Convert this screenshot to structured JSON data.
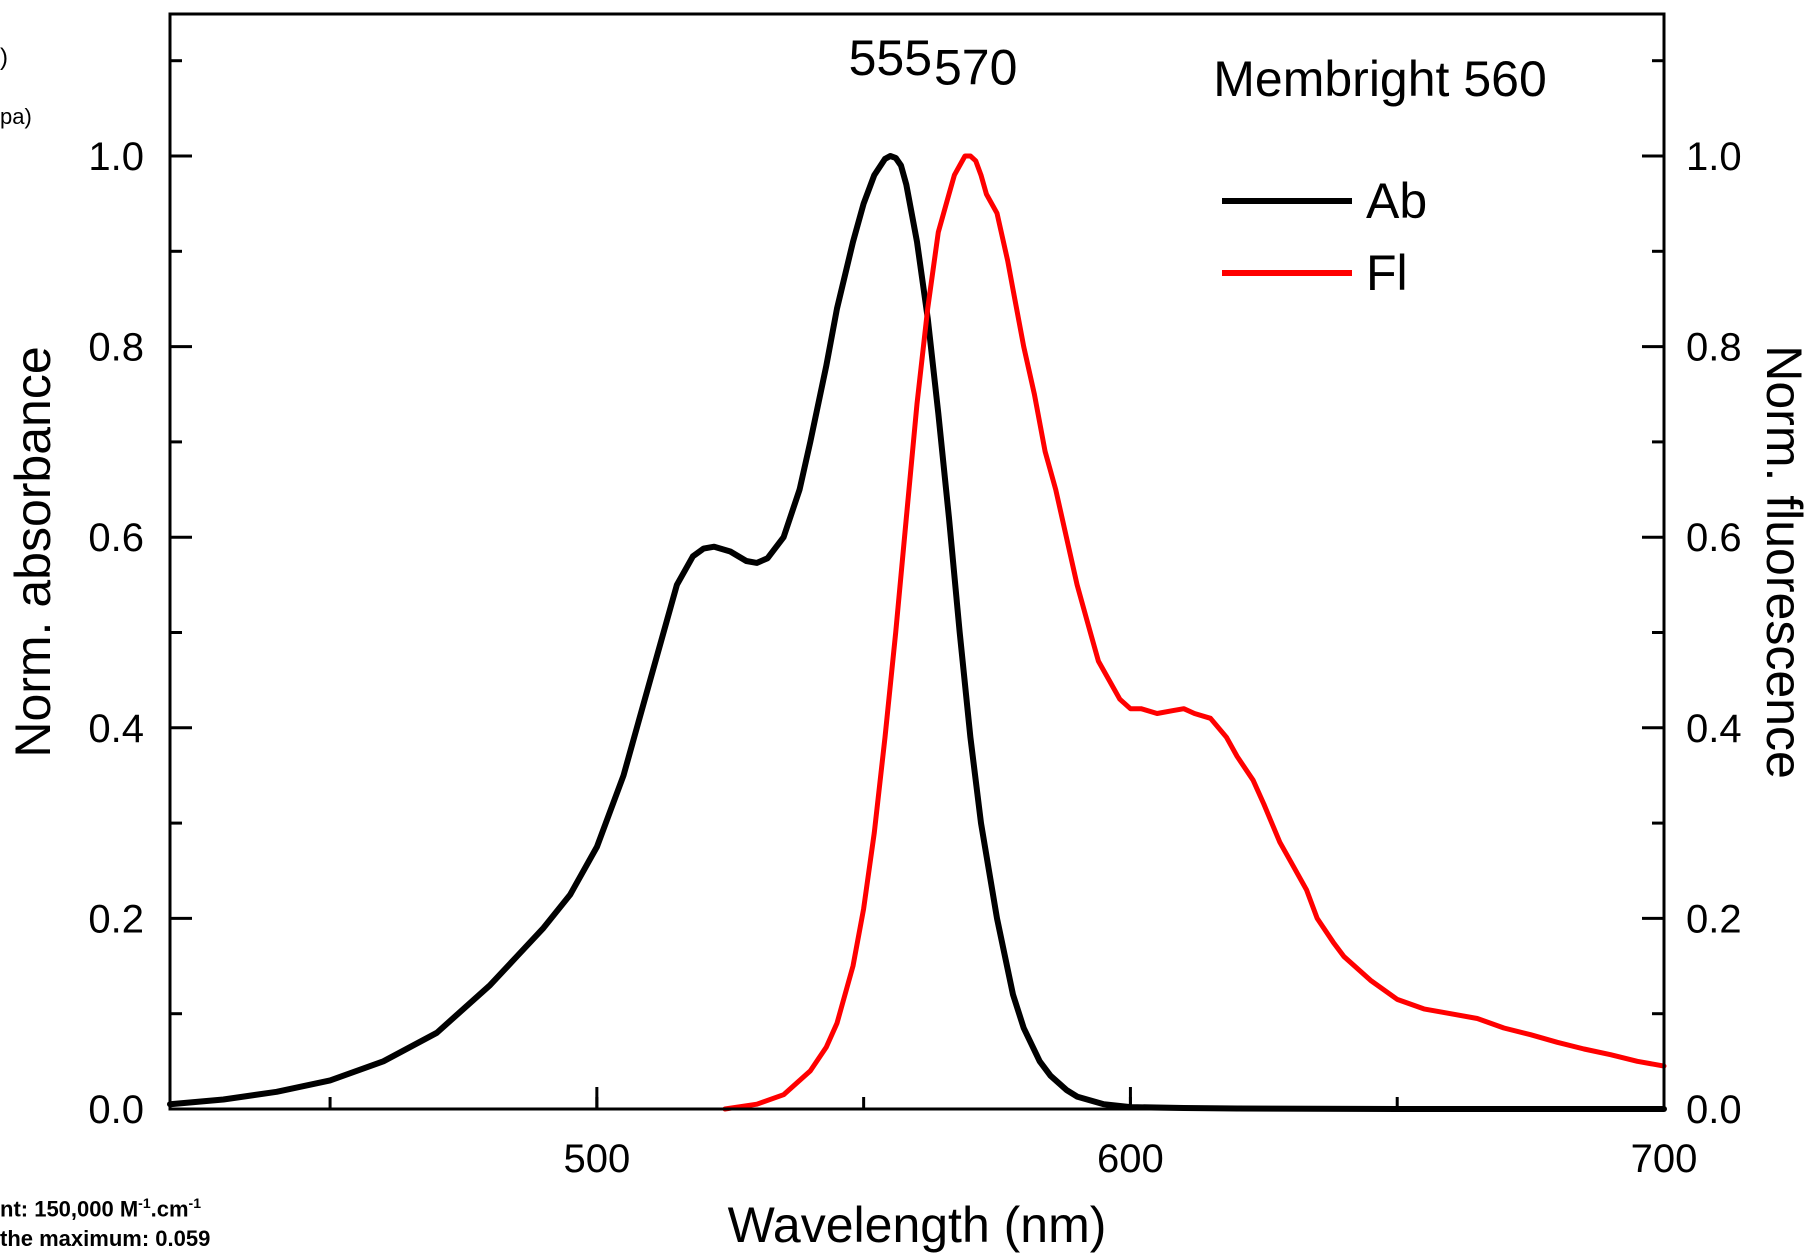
{
  "chart_data": {
    "type": "line",
    "title": "Membright 560",
    "xlabel": "Wavelength (nm)",
    "ylabel_left": "Norm. absorbance",
    "ylabel_right": "Norm. fluorescence",
    "xlim": [
      420,
      700
    ],
    "ylim": [
      0,
      1.15
    ],
    "x_ticks": [
      500,
      600,
      700
    ],
    "x_tick_labels": [
      "500",
      "600",
      "700"
    ],
    "y_ticks": [
      0.0,
      0.2,
      0.4,
      0.6,
      0.8,
      1.0
    ],
    "y_tick_labels": [
      "0.0",
      "0.2",
      "0.4",
      "0.6",
      "0.8",
      "1.0"
    ],
    "legend_position": "top-right",
    "grid": false,
    "series": [
      {
        "name": "Ab",
        "color": "#000000",
        "x": [
          420,
          430,
          440,
          450,
          460,
          470,
          480,
          485,
          490,
          495,
          500,
          505,
          510,
          515,
          518,
          520,
          522,
          525,
          528,
          530,
          532,
          535,
          538,
          540,
          543,
          545,
          548,
          550,
          552,
          554,
          555,
          556,
          557,
          558,
          560,
          562,
          564,
          566,
          568,
          570,
          572,
          575,
          578,
          580,
          583,
          585,
          588,
          590,
          595,
          600,
          610,
          620,
          650,
          700
        ],
        "y": [
          0.005,
          0.01,
          0.018,
          0.03,
          0.05,
          0.08,
          0.13,
          0.16,
          0.19,
          0.225,
          0.275,
          0.35,
          0.45,
          0.55,
          0.58,
          0.588,
          0.59,
          0.585,
          0.575,
          0.573,
          0.578,
          0.6,
          0.65,
          0.7,
          0.78,
          0.84,
          0.91,
          0.95,
          0.98,
          0.997,
          1.0,
          0.998,
          0.99,
          0.97,
          0.91,
          0.83,
          0.73,
          0.62,
          0.5,
          0.39,
          0.3,
          0.2,
          0.12,
          0.085,
          0.05,
          0.035,
          0.02,
          0.013,
          0.005,
          0.002,
          0.001,
          0.0005,
          0.0,
          0.0
        ],
        "stroke_width": 6
      },
      {
        "name": "Fl",
        "color": "#ff0000",
        "x": [
          524,
          530,
          535,
          540,
          543,
          545,
          548,
          550,
          552,
          554,
          556,
          558,
          560,
          562,
          564,
          566,
          567,
          568,
          569,
          570,
          571,
          572,
          573,
          575,
          577,
          578,
          580,
          582,
          584,
          586,
          588,
          590,
          592,
          594,
          596,
          598,
          600,
          602,
          605,
          608,
          610,
          612,
          615,
          618,
          620,
          623,
          625,
          628,
          630,
          633,
          635,
          638,
          640,
          645,
          650,
          655,
          660,
          665,
          670,
          675,
          680,
          685,
          690,
          695,
          700
        ],
        "y": [
          0.0,
          0.005,
          0.015,
          0.04,
          0.065,
          0.09,
          0.15,
          0.21,
          0.29,
          0.39,
          0.5,
          0.62,
          0.74,
          0.84,
          0.92,
          0.96,
          0.98,
          0.99,
          1.0,
          1.0,
          0.995,
          0.98,
          0.96,
          0.94,
          0.89,
          0.86,
          0.8,
          0.75,
          0.69,
          0.65,
          0.6,
          0.55,
          0.51,
          0.47,
          0.45,
          0.43,
          0.42,
          0.42,
          0.415,
          0.418,
          0.42,
          0.415,
          0.41,
          0.39,
          0.37,
          0.345,
          0.32,
          0.28,
          0.26,
          0.23,
          0.2,
          0.175,
          0.16,
          0.135,
          0.115,
          0.105,
          0.1,
          0.095,
          0.085,
          0.078,
          0.07,
          0.063,
          0.057,
          0.05,
          0.045
        ],
        "stroke_width": 5
      }
    ],
    "annotations": [
      {
        "text": "555",
        "x": 555,
        "y": 1.085
      },
      {
        "text": "570",
        "x": 571,
        "y": 1.075
      }
    ]
  },
  "fragments": {
    "top_1": ")",
    "top_2": "pa)",
    "bottom_1_pre": "nt: 150,000 M",
    "bottom_1_sup1": "-1",
    "bottom_1_mid": ".cm",
    "bottom_1_sup2": "-1",
    "bottom_2": "the maximum: 0.059"
  }
}
